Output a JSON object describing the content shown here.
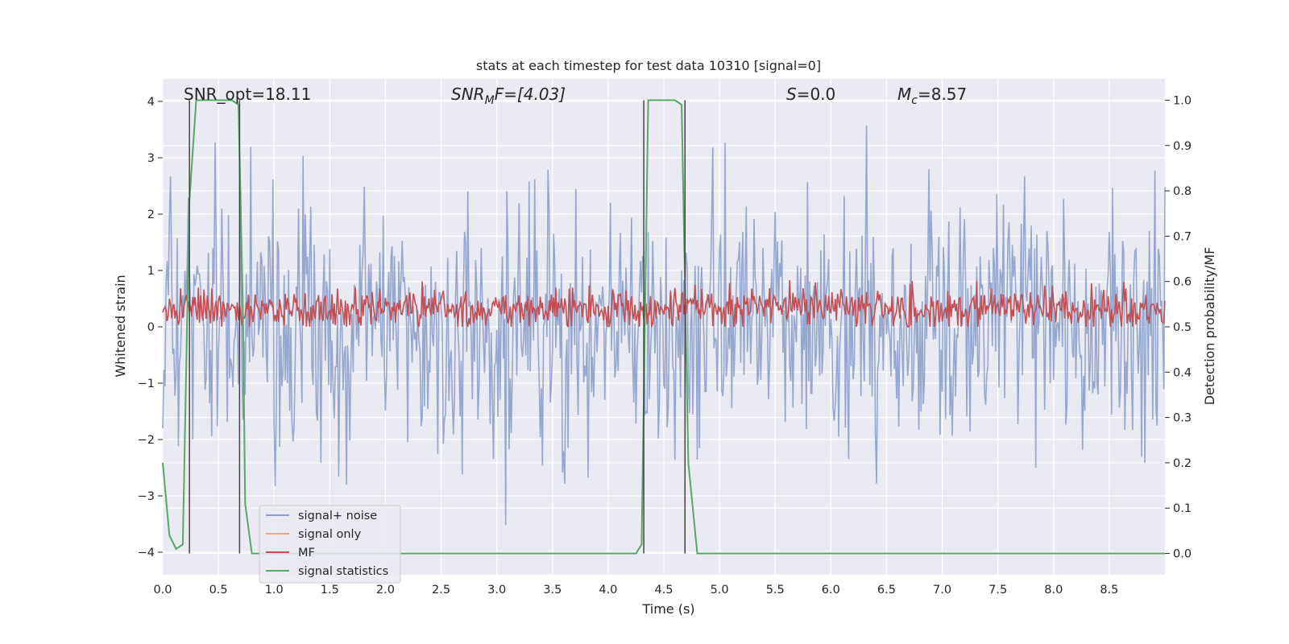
{
  "chart_data": {
    "type": "line",
    "title": "stats at each timestep for test data 10310 [signal=0]",
    "xlabel": "Time (s)",
    "ylabel": "Whitened strain",
    "y2label": "Detection probability/MF",
    "xlim": [
      0.0,
      9.0
    ],
    "ylim": [
      -4.4,
      4.4
    ],
    "y2lim": [
      -0.047,
      1.047
    ],
    "x_ticks": [
      0.0,
      0.5,
      1.0,
      1.5,
      2.0,
      2.5,
      3.0,
      3.5,
      4.0,
      4.5,
      5.0,
      5.5,
      6.0,
      6.5,
      7.0,
      7.5,
      8.0,
      8.5
    ],
    "y_ticks": [
      -4,
      -3,
      -2,
      -1,
      0,
      1,
      2,
      3,
      4
    ],
    "y2_ticks": [
      0.0,
      0.1,
      0.2,
      0.3,
      0.4,
      0.5,
      0.6,
      0.7,
      0.8,
      0.9,
      1.0
    ],
    "grid": true,
    "legend_position": "lower-left",
    "annotations": {
      "snr_opt": "SNR_opt=18.11",
      "snr_mf_main": "SNR",
      "snr_mf_sub": "M",
      "snr_mf_rest": "F=[4.03]",
      "s_main": "S",
      "s_rest": "=0.0",
      "mc_main": "M",
      "mc_sub": "c",
      "mc_rest": "=8.57"
    },
    "series": [
      {
        "name": "signal+ noise",
        "color": "#8da0cb",
        "axis": "left",
        "description_kind": "noise",
        "sigma": 1.0,
        "upper_envelope": 3.9,
        "lower_envelope": -3.9,
        "samples_per_second": 100
      },
      {
        "name": "signal only",
        "color": "#e8a98a",
        "axis": "left",
        "values": [
          0
        ]
      },
      {
        "name": "MF",
        "color": "#c44e52",
        "axis": "right",
        "mean": 0.54,
        "range": [
          0.5,
          0.62
        ],
        "samples_per_second": 100
      },
      {
        "name": "signal statistics",
        "color": "#55a868",
        "axis": "right",
        "x": [
          0.0,
          0.06,
          0.12,
          0.18,
          0.24,
          0.3,
          0.62,
          0.68,
          0.72,
          0.74,
          0.8,
          4.25,
          4.3,
          4.36,
          4.6,
          4.66,
          4.72,
          4.8,
          9.0
        ],
        "y": [
          0.2,
          0.04,
          0.01,
          0.02,
          0.78,
          1.0,
          1.0,
          0.99,
          0.54,
          0.11,
          0.0,
          0.0,
          0.02,
          1.0,
          1.0,
          0.99,
          0.2,
          0.0,
          0.0
        ]
      }
    ],
    "vertical_markers": [
      0.24,
      0.69,
      4.32,
      4.69
    ],
    "legend": [
      "signal+ noise",
      "signal only",
      "MF",
      "signal statistics"
    ]
  }
}
